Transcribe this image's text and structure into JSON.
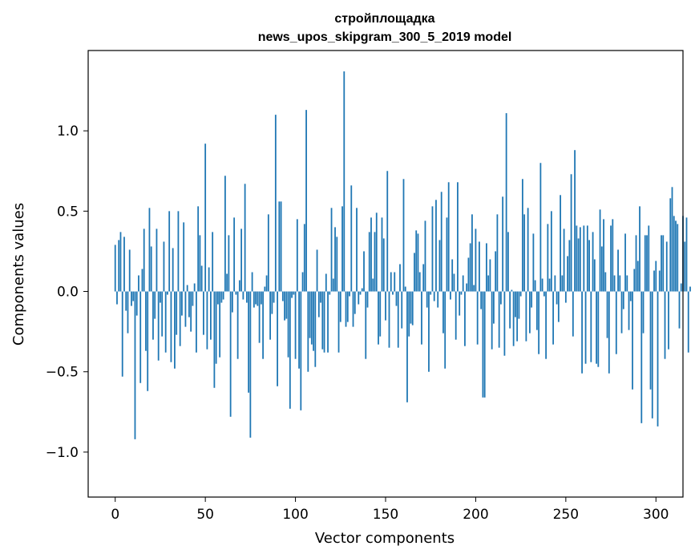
{
  "chart_data": {
    "type": "bar",
    "title": [
      "стройплощадка",
      "news_upos_skipgram_300_5_2019 model"
    ],
    "xlabel": "Vector components",
    "ylabel": "Components values",
    "xlim": [
      -15,
      315
    ],
    "ylim": [
      -1.28,
      1.5
    ],
    "xticks": [
      {
        "value": 0,
        "label": "0"
      },
      {
        "value": 50,
        "label": "50"
      },
      {
        "value": 100,
        "label": "100"
      },
      {
        "value": 150,
        "label": "150"
      },
      {
        "value": 200,
        "label": "200"
      },
      {
        "value": 250,
        "label": "250"
      },
      {
        "value": 300,
        "label": "300"
      }
    ],
    "yticks": [
      {
        "value": 1.0,
        "label": "1.0"
      },
      {
        "value": 0.5,
        "label": "0.5"
      },
      {
        "value": 0.0,
        "label": "0.0"
      },
      {
        "value": -0.5,
        "label": "−0.5"
      },
      {
        "value": -1.0,
        "label": "−1.0"
      }
    ],
    "bar_color": "#1f77b4",
    "grid": false,
    "values": [
      0.29,
      -0.08,
      0.32,
      0.37,
      -0.53,
      0.34,
      -0.12,
      -0.26,
      0.26,
      -0.09,
      -0.06,
      -0.92,
      -0.15,
      0.1,
      -0.57,
      0.14,
      0.39,
      -0.37,
      -0.62,
      0.52,
      0.28,
      -0.3,
      -0.17,
      0.39,
      -0.43,
      -0.07,
      -0.28,
      0.31,
      -0.38,
      -0.02,
      0.5,
      -0.44,
      0.27,
      -0.48,
      -0.27,
      0.5,
      -0.34,
      -0.15,
      0.43,
      -0.22,
      0.04,
      -0.16,
      -0.25,
      -0.09,
      0.05,
      -0.38,
      0.53,
      0.35,
      0.16,
      -0.27,
      0.92,
      -0.36,
      0.15,
      -0.3,
      0.37,
      -0.6,
      -0.45,
      -0.08,
      -0.41,
      -0.07,
      -0.05,
      0.72,
      0.11,
      0.35,
      -0.78,
      -0.13,
      0.46,
      -0.02,
      -0.42,
      0.07,
      0.39,
      -0.05,
      0.67,
      -0.07,
      -0.63,
      -0.91,
      0.12,
      -0.1,
      -0.08,
      -0.09,
      -0.32,
      -0.08,
      -0.42,
      0.03,
      0.1,
      0.48,
      -0.3,
      -0.14,
      -0.07,
      1.1,
      -0.59,
      0.56,
      0.56,
      -0.06,
      -0.18,
      -0.17,
      -0.41,
      -0.73,
      -0.04,
      -0.02,
      -0.42,
      0.45,
      -0.48,
      -0.74,
      0.12,
      0.42,
      1.13,
      -0.5,
      -0.29,
      -0.33,
      -0.37,
      -0.47,
      0.26,
      -0.16,
      -0.07,
      -0.36,
      -0.38,
      0.11,
      -0.38,
      -0.02,
      0.52,
      0.08,
      0.4,
      0.34,
      -0.38,
      -0.19,
      0.53,
      1.37,
      -0.22,
      -0.19,
      -0.03,
      0.66,
      -0.22,
      -0.14,
      0.52,
      -0.08,
      -0.02,
      0.02,
      0.25,
      -0.42,
      -0.1,
      0.37,
      0.46,
      0.08,
      0.37,
      0.49,
      -0.33,
      -0.28,
      0.46,
      0.33,
      -0.18,
      0.75,
      -0.35,
      0.12,
      -0.02,
      0.12,
      -0.09,
      -0.35,
      0.17,
      -0.23,
      0.7,
      0.03,
      -0.69,
      -0.28,
      -0.2,
      -0.21,
      0.24,
      0.38,
      0.36,
      0.12,
      -0.33,
      0.17,
      0.44,
      -0.1,
      -0.5,
      -0.02,
      0.53,
      -0.06,
      0.57,
      -0.1,
      0.32,
      0.62,
      -0.26,
      -0.48,
      0.46,
      0.68,
      -0.05,
      0.2,
      0.11,
      -0.3,
      0.68,
      -0.15,
      -0.02,
      0.1,
      -0.34,
      0.05,
      0.21,
      0.3,
      0.48,
      0.04,
      0.39,
      -0.33,
      0.31,
      -0.11,
      -0.66,
      -0.66,
      0.3,
      0.1,
      0.2,
      -0.36,
      -0.2,
      0.25,
      0.48,
      -0.35,
      -0.08,
      0.59,
      -0.4,
      1.11,
      0.37,
      -0.23,
      0.01,
      -0.34,
      -0.16,
      -0.31,
      -0.17,
      -0.03,
      0.7,
      0.48,
      -0.31,
      0.52,
      -0.26,
      -0.1,
      0.36,
      0.07,
      -0.24,
      -0.39,
      0.8,
      0.08,
      -0.03,
      -0.42,
      0.42,
      0.08,
      0.5,
      -0.33,
      0.1,
      -0.08,
      -0.19,
      0.6,
      0.1,
      0.39,
      -0.07,
      0.22,
      0.32,
      0.73,
      -0.28,
      0.88,
      0.41,
      0.33,
      0.4,
      -0.51,
      0.41,
      -0.45,
      0.41,
      0.32,
      -0.44,
      0.37,
      0.2,
      -0.45,
      -0.47,
      0.51,
      0.28,
      0.45,
      0.12,
      -0.29,
      -0.51,
      0.41,
      0.45,
      0.1,
      -0.39,
      0.26,
      0.1,
      -0.26,
      -0.11,
      0.36,
      0.1,
      -0.24,
      -0.06,
      -0.61,
      0.14,
      0.35,
      0.19,
      0.53,
      -0.82,
      -0.26,
      0.35,
      0.35,
      0.41,
      -0.61,
      -0.79,
      0.13,
      0.19,
      -0.84,
      0.13,
      0.35,
      0.35,
      -0.42,
      0.31,
      -0.36,
      0.58,
      0.65,
      0.47,
      0.44,
      0.42,
      -0.23,
      0.05,
      0.47,
      0.31,
      0.46,
      -0.38,
      0.03
    ]
  }
}
